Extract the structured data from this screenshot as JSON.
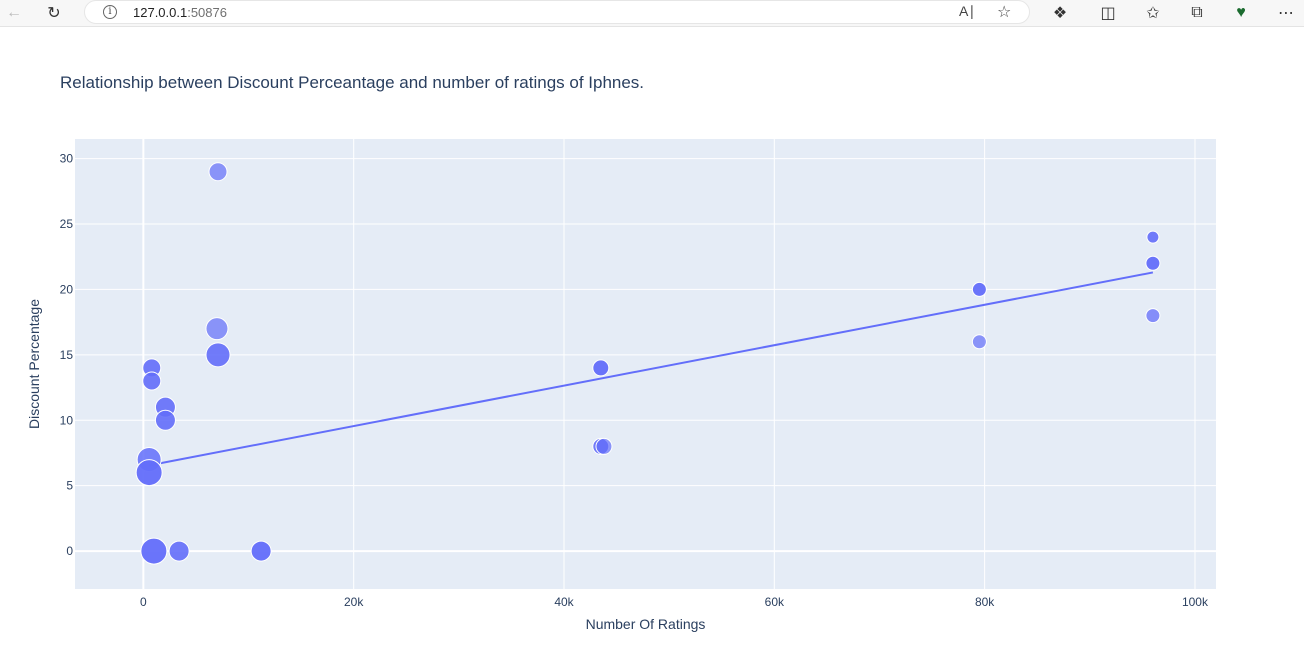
{
  "browser": {
    "url_host": "127.0.0.1",
    "url_port": ":50876",
    "icons": [
      "back-icon",
      "refresh-icon",
      "info-icon",
      "read-aloud-icon",
      "favorite-star-icon",
      "extensions-icon",
      "split-screen-icon",
      "favorites-icon",
      "collections-icon",
      "browser-essentials-icon",
      "more-menu-icon"
    ]
  },
  "chart_data": {
    "type": "scatter",
    "title": "Relationship between Discount Perceantage and number of ratings of Iphnes.",
    "xlabel": "Number Of Ratings",
    "ylabel": "Discount Percentage",
    "xlim": [
      -6500,
      102000
    ],
    "ylim": [
      -2.9,
      31.5
    ],
    "x_ticks": [
      0,
      20000,
      40000,
      60000,
      80000,
      100000
    ],
    "x_tick_labels": [
      "0",
      "20k",
      "40k",
      "60k",
      "80k",
      "100k"
    ],
    "y_ticks": [
      0,
      5,
      10,
      15,
      20,
      25,
      30
    ],
    "y_tick_labels": [
      "0",
      "5",
      "10",
      "15",
      "20",
      "25",
      "30"
    ],
    "grid": true,
    "colors": {
      "plot_bg": "#e5ecf6",
      "grid": "#ffffff",
      "marker": "#636efa",
      "text": "#2a3f5f"
    },
    "points": [
      {
        "x": 7100,
        "y": 29,
        "size": 9,
        "opacity": 0.7
      },
      {
        "x": 7000,
        "y": 17,
        "size": 11,
        "opacity": 0.7
      },
      {
        "x": 7100,
        "y": 15,
        "size": 12,
        "opacity": 0.9
      },
      {
        "x": 800,
        "y": 14,
        "size": 9,
        "opacity": 0.9
      },
      {
        "x": 800,
        "y": 13,
        "size": 9,
        "opacity": 0.9
      },
      {
        "x": 2100,
        "y": 11,
        "size": 10,
        "opacity": 0.9
      },
      {
        "x": 2100,
        "y": 10,
        "size": 10,
        "opacity": 0.9
      },
      {
        "x": 550,
        "y": 7,
        "size": 12,
        "opacity": 0.85
      },
      {
        "x": 550,
        "y": 6,
        "size": 13,
        "opacity": 0.95
      },
      {
        "x": 1000,
        "y": 0,
        "size": 13,
        "opacity": 0.95
      },
      {
        "x": 3400,
        "y": 0,
        "size": 10,
        "opacity": 0.9
      },
      {
        "x": 11200,
        "y": 0,
        "size": 10,
        "opacity": 0.95
      },
      {
        "x": 43500,
        "y": 14,
        "size": 8,
        "opacity": 0.95
      },
      {
        "x": 43500,
        "y": 8,
        "size": 8,
        "opacity": 0.9
      },
      {
        "x": 43800,
        "y": 8,
        "size": 8,
        "opacity": 0.7
      },
      {
        "x": 79500,
        "y": 20,
        "size": 7,
        "opacity": 0.95
      },
      {
        "x": 79500,
        "y": 16,
        "size": 7,
        "opacity": 0.7
      },
      {
        "x": 96000,
        "y": 24,
        "size": 6,
        "opacity": 0.9
      },
      {
        "x": 96000,
        "y": 22,
        "size": 7,
        "opacity": 0.95
      },
      {
        "x": 96000,
        "y": 18,
        "size": 7,
        "opacity": 0.75
      }
    ],
    "trendline": {
      "x": [
        550,
        96000
      ],
      "y": [
        6.55,
        21.3
      ]
    }
  }
}
